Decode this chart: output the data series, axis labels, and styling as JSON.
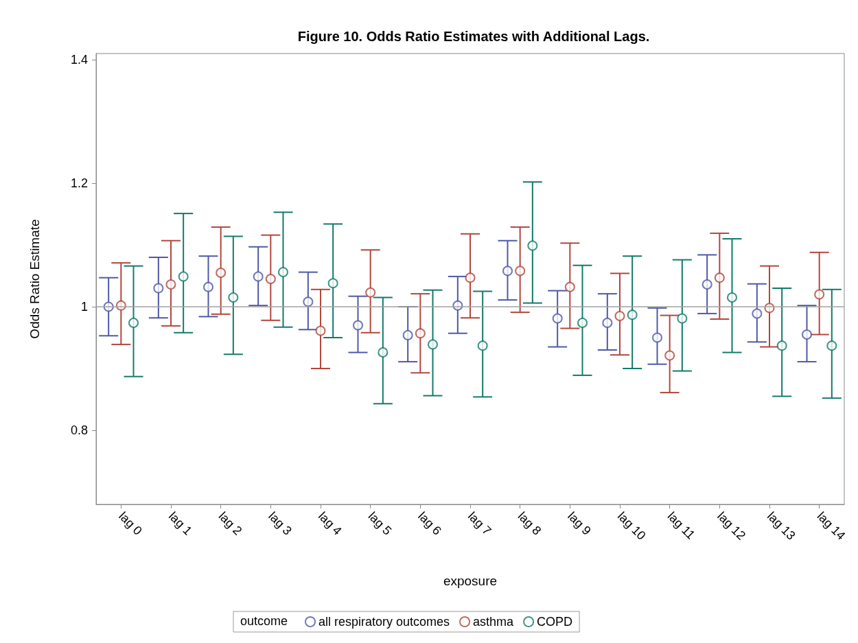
{
  "chart_data": {
    "type": "scatter",
    "title": "Figure 10. Odds Ratio Estimates with Additional Lags.",
    "xlabel": "exposure",
    "ylabel": "Odds Ratio Estimate",
    "legend_title": "outcome",
    "categories": [
      "lag 0",
      "lag 1",
      "lag 2",
      "lag 3",
      "lag 4",
      "lag 5",
      "lag 6",
      "lag 7",
      "lag 8",
      "lag 9",
      "lag 10",
      "lag 11",
      "lag 12",
      "lag 13",
      "lag 14"
    ],
    "series": [
      {
        "name": "all respiratory outcomes",
        "color": "#4e58a6",
        "values": [
          1.0,
          1.03,
          1.032,
          1.049,
          1.008,
          0.97,
          0.954,
          1.002,
          1.058,
          0.981,
          0.974,
          0.95,
          1.036,
          0.989,
          0.955
        ],
        "errors": [
          [
            0.953,
            1.047
          ],
          [
            0.982,
            1.08
          ],
          [
            0.984,
            1.082
          ],
          [
            1.002,
            1.097
          ],
          [
            0.963,
            1.056
          ],
          [
            0.926,
            1.017
          ],
          [
            0.911,
            1.0
          ],
          [
            0.957,
            1.049
          ],
          [
            1.011,
            1.107
          ],
          [
            0.935,
            1.026
          ],
          [
            0.93,
            1.021
          ],
          [
            0.907,
            0.998
          ],
          [
            0.989,
            1.084
          ],
          [
            0.943,
            1.037
          ],
          [
            0.911,
            1.002
          ]
        ]
      },
      {
        "name": "asthma",
        "color": "#b2463c",
        "values": [
          1.002,
          1.036,
          1.055,
          1.045,
          0.961,
          1.023,
          0.957,
          1.047,
          1.058,
          1.032,
          0.985,
          0.921,
          1.047,
          0.998,
          1.02
        ],
        "errors": [
          [
            0.939,
            1.071
          ],
          [
            0.969,
            1.107
          ],
          [
            0.988,
            1.129
          ],
          [
            0.978,
            1.116
          ],
          [
            0.9,
            1.028
          ],
          [
            0.958,
            1.092
          ],
          [
            0.893,
            1.021
          ],
          [
            0.982,
            1.118
          ],
          [
            0.991,
            1.129
          ],
          [
            0.965,
            1.103
          ],
          [
            0.922,
            1.054
          ],
          [
            0.861,
            0.986
          ],
          [
            0.98,
            1.119
          ],
          [
            0.935,
            1.066
          ],
          [
            0.955,
            1.088
          ]
        ]
      },
      {
        "name": "COPD",
        "color": "#127a6a",
        "values": [
          0.974,
          1.049,
          1.015,
          1.056,
          1.038,
          0.926,
          0.939,
          0.937,
          1.099,
          0.974,
          0.987,
          0.981,
          1.015,
          0.937,
          0.937
        ],
        "errors": [
          [
            0.887,
            1.066
          ],
          [
            0.958,
            1.151
          ],
          [
            0.923,
            1.114
          ],
          [
            0.967,
            1.153
          ],
          [
            0.95,
            1.134
          ],
          [
            0.843,
            1.015
          ],
          [
            0.856,
            1.027
          ],
          [
            0.854,
            1.025
          ],
          [
            1.006,
            1.202
          ],
          [
            0.889,
            1.067
          ],
          [
            0.9,
            1.082
          ],
          [
            0.896,
            1.076
          ],
          [
            0.926,
            1.11
          ],
          [
            0.855,
            1.03
          ],
          [
            0.852,
            1.028
          ]
        ]
      }
    ],
    "ylim": [
      0.68,
      1.41
    ],
    "yticks": [
      0.8,
      1,
      1.2,
      1.4
    ],
    "ref_lines": [
      {
        "axis": "y",
        "value": 1,
        "color": "#a0a0a0"
      }
    ],
    "grid": false,
    "legend": "bottom",
    "marker": "circle"
  }
}
